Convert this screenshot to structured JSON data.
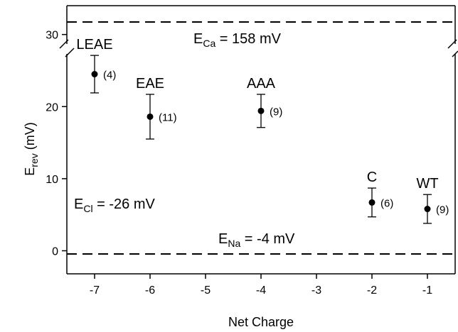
{
  "chart_data": {
    "type": "scatter",
    "title": "",
    "xlabel": "Net Charge",
    "ylabel": {
      "main": "E",
      "sub": "rev",
      "unit": " (mV)"
    },
    "xlim": [
      -7.5,
      -0.5
    ],
    "ylim": [
      -3.2,
      34
    ],
    "x_ticks": [
      -7,
      -6,
      -5,
      -4,
      -3,
      -2,
      -1
    ],
    "y_ticks": [
      0,
      10,
      20,
      30
    ],
    "grid": false,
    "points": [
      {
        "label": "LEAE",
        "x": -7,
        "y": 24.5,
        "err": 2.6,
        "n": "(4)"
      },
      {
        "label": "EAE",
        "x": -6,
        "y": 18.6,
        "err": 3.1,
        "n": "(11)"
      },
      {
        "label": "AAA",
        "x": -4,
        "y": 19.4,
        "err": 2.3,
        "n": "(9)"
      },
      {
        "label": "C",
        "x": -2,
        "y": 6.7,
        "err": 2.0,
        "n": "(6)"
      },
      {
        "label": "WT",
        "x": -1,
        "y": 5.8,
        "err": 2.0,
        "n": "(9)"
      }
    ],
    "annotations": [
      {
        "main": "E",
        "sub": "Ca",
        "rest": " = 158 mV",
        "value": 158
      },
      {
        "main": "E",
        "sub": "Na",
        "rest": " = -4 mV",
        "value": -4
      },
      {
        "main": "E",
        "sub": "Cl",
        "rest": " = -26 mV",
        "value": -26
      }
    ]
  }
}
